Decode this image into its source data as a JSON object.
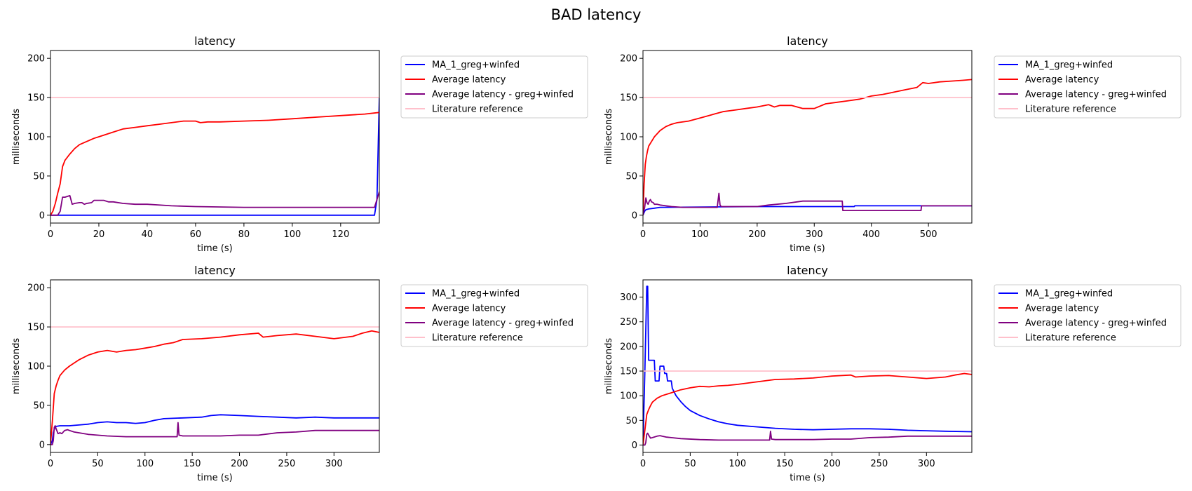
{
  "figure_title": "BAD latency",
  "colors": {
    "ma": "#0000ff",
    "avg": "#ff0000",
    "avg_minus": "#800080",
    "ref": "#ffc0cb"
  },
  "chart_data": [
    {
      "type": "line",
      "title": "latency",
      "xlabel": "time (s)",
      "ylabel": "milliseconds",
      "xlim": [
        0,
        136
      ],
      "ylim": [
        -10,
        210
      ],
      "xticks": [
        0,
        20,
        40,
        60,
        80,
        100,
        120
      ],
      "yticks": [
        0,
        50,
        100,
        150,
        200
      ],
      "legend_position": "outside-right",
      "series": [
        {
          "name": "MA_1_greg+winfed",
          "color": "#0000ff",
          "x": [
            0,
            134,
            135,
            136
          ],
          "y": [
            0,
            0,
            20,
            150
          ]
        },
        {
          "name": "Average latency",
          "color": "#ff0000",
          "x": [
            0,
            1,
            2,
            3,
            4,
            5,
            6,
            8,
            10,
            12,
            15,
            18,
            20,
            25,
            30,
            35,
            40,
            45,
            50,
            55,
            60,
            62,
            65,
            70,
            80,
            90,
            100,
            110,
            120,
            130,
            136
          ],
          "y": [
            0,
            5,
            15,
            28,
            40,
            62,
            70,
            78,
            85,
            90,
            94,
            98,
            100,
            105,
            110,
            112,
            114,
            116,
            118,
            120,
            120,
            118,
            119,
            119,
            120,
            121,
            123,
            125,
            127,
            129,
            131
          ]
        },
        {
          "name": "Average latency - greg+winfed",
          "color": "#800080",
          "x": [
            0,
            3,
            4,
            5,
            6,
            7,
            8,
            9,
            10,
            12,
            13,
            14,
            15,
            17,
            18,
            20,
            22,
            24,
            26,
            30,
            35,
            40,
            50,
            60,
            80,
            100,
            110,
            120,
            134,
            135,
            136
          ],
          "y": [
            0,
            0,
            5,
            23,
            23,
            24,
            25,
            14,
            15,
            16,
            16,
            14,
            15,
            16,
            19,
            19,
            19,
            17,
            17,
            15,
            14,
            14,
            12,
            11,
            10,
            10,
            10,
            10,
            10,
            20,
            30
          ]
        },
        {
          "name": "Literature reference",
          "color": "#ffc0cb",
          "x": [
            0,
            136
          ],
          "y": [
            150,
            150
          ]
        }
      ]
    },
    {
      "type": "line",
      "title": "latency",
      "xlabel": "time (s)",
      "ylabel": "milliseconds",
      "xlim": [
        0,
        576
      ],
      "ylim": [
        -10,
        210
      ],
      "xticks": [
        0,
        100,
        200,
        300,
        400,
        500
      ],
      "yticks": [
        0,
        50,
        100,
        150,
        200
      ],
      "legend_position": "outside-right",
      "series": [
        {
          "name": "MA_1_greg+winfed",
          "color": "#0000ff",
          "x": [
            0,
            3,
            5,
            10,
            20,
            30,
            200,
            370,
            371,
            576
          ],
          "y": [
            0,
            5,
            7,
            8,
            9,
            10,
            11,
            11,
            12,
            12
          ]
        },
        {
          "name": "Average latency",
          "color": "#ff0000",
          "x": [
            0,
            2,
            4,
            6,
            8,
            10,
            15,
            20,
            30,
            40,
            50,
            60,
            80,
            100,
            120,
            140,
            160,
            180,
            200,
            220,
            230,
            240,
            260,
            280,
            300,
            320,
            340,
            360,
            380,
            400,
            420,
            440,
            460,
            480,
            490,
            500,
            520,
            540,
            560,
            576
          ],
          "y": [
            0,
            40,
            65,
            75,
            82,
            88,
            94,
            100,
            108,
            113,
            116,
            118,
            120,
            124,
            128,
            132,
            134,
            136,
            138,
            141,
            138,
            140,
            140,
            136,
            136,
            142,
            144,
            146,
            148,
            152,
            154,
            157,
            160,
            163,
            169,
            168,
            170,
            171,
            172,
            173
          ]
        },
        {
          "name": "Average latency - greg+winfed",
          "color": "#800080",
          "x": [
            0,
            3,
            5,
            7,
            9,
            11,
            13,
            15,
            18,
            20,
            25,
            30,
            40,
            50,
            70,
            90,
            100,
            130,
            133,
            135,
            137,
            200,
            220,
            250,
            280,
            300,
            320,
            349,
            350,
            487,
            488,
            576
          ],
          "y": [
            0,
            10,
            22,
            16,
            14,
            18,
            20,
            17,
            16,
            14,
            14,
            13,
            12,
            11,
            10,
            10,
            10,
            10,
            28,
            13,
            11,
            11,
            13,
            15,
            18,
            18,
            18,
            18,
            6,
            6,
            12,
            12
          ]
        },
        {
          "name": "Literature reference",
          "color": "#ffc0cb",
          "x": [
            0,
            576
          ],
          "y": [
            150,
            150
          ]
        }
      ]
    },
    {
      "type": "line",
      "title": "latency",
      "xlabel": "time (s)",
      "ylabel": "milliseconds",
      "xlim": [
        0,
        348
      ],
      "ylim": [
        -10,
        210
      ],
      "xticks": [
        0,
        50,
        100,
        150,
        200,
        250,
        300
      ],
      "yticks": [
        0,
        50,
        100,
        150,
        200
      ],
      "legend_position": "outside-right",
      "series": [
        {
          "name": "MA_1_greg+winfed",
          "color": "#0000ff",
          "x": [
            0,
            2,
            3,
            5,
            10,
            20,
            30,
            40,
            50,
            60,
            70,
            80,
            90,
            100,
            110,
            120,
            140,
            160,
            170,
            180,
            200,
            220,
            240,
            260,
            280,
            300,
            320,
            348
          ],
          "y": [
            0,
            5,
            15,
            23,
            24,
            24,
            25,
            26,
            28,
            29,
            28,
            28,
            27,
            28,
            31,
            33,
            34,
            35,
            37,
            38,
            37,
            36,
            35,
            34,
            35,
            34,
            34,
            34
          ]
        },
        {
          "name": "Average latency",
          "color": "#ff0000",
          "x": [
            0,
            2,
            4,
            6,
            8,
            10,
            15,
            20,
            30,
            40,
            50,
            60,
            70,
            80,
            90,
            100,
            110,
            120,
            130,
            140,
            160,
            180,
            200,
            220,
            225,
            240,
            260,
            280,
            300,
            320,
            330,
            340,
            348
          ],
          "y": [
            0,
            30,
            65,
            75,
            82,
            88,
            95,
            100,
            108,
            114,
            118,
            120,
            118,
            120,
            121,
            123,
            125,
            128,
            130,
            134,
            135,
            137,
            140,
            142,
            137,
            139,
            141,
            138,
            135,
            138,
            142,
            145,
            143
          ]
        },
        {
          "name": "Average latency - greg+winfed",
          "color": "#800080",
          "x": [
            0,
            2,
            3,
            4,
            5,
            6,
            8,
            10,
            12,
            15,
            18,
            20,
            25,
            30,
            40,
            60,
            80,
            100,
            120,
            134,
            135,
            136,
            140,
            160,
            180,
            200,
            220,
            240,
            260,
            280,
            300,
            348
          ],
          "y": [
            0,
            0,
            5,
            22,
            24,
            20,
            14,
            15,
            14,
            18,
            19,
            18,
            16,
            15,
            13,
            11,
            10,
            10,
            10,
            10,
            28,
            12,
            11,
            11,
            11,
            12,
            12,
            15,
            16,
            18,
            18,
            18
          ]
        },
        {
          "name": "Literature reference",
          "color": "#ffc0cb",
          "x": [
            0,
            348
          ],
          "y": [
            150,
            150
          ]
        }
      ]
    },
    {
      "type": "line",
      "title": "latency",
      "xlabel": "time (s)",
      "ylabel": "milliseconds",
      "xlim": [
        0,
        348
      ],
      "ylim": [
        -15,
        335
      ],
      "xticks": [
        0,
        50,
        100,
        150,
        200,
        250,
        300
      ],
      "yticks": [
        0,
        50,
        100,
        150,
        200,
        250,
        300
      ],
      "legend_position": "outside-right",
      "series": [
        {
          "name": "MA_1_greg+winfed",
          "color": "#0000ff",
          "x": [
            0,
            2,
            4,
            5,
            6,
            7,
            8,
            12,
            13,
            14,
            17,
            18,
            22,
            23,
            25,
            26,
            30,
            31,
            35,
            40,
            45,
            50,
            60,
            70,
            80,
            90,
            100,
            120,
            140,
            160,
            180,
            200,
            220,
            240,
            260,
            280,
            300,
            320,
            348
          ],
          "y": [
            0,
            150,
            322,
            322,
            172,
            172,
            172,
            172,
            130,
            130,
            130,
            160,
            160,
            145,
            145,
            130,
            130,
            115,
            100,
            88,
            78,
            70,
            60,
            53,
            47,
            43,
            40,
            37,
            34,
            32,
            31,
            32,
            33,
            33,
            32,
            30,
            29,
            28,
            27
          ]
        },
        {
          "name": "Average latency",
          "color": "#ff0000",
          "x": [
            0,
            2,
            4,
            6,
            8,
            10,
            15,
            20,
            30,
            40,
            50,
            60,
            70,
            80,
            90,
            100,
            120,
            140,
            160,
            180,
            200,
            220,
            225,
            240,
            260,
            280,
            300,
            320,
            330,
            340,
            348
          ],
          "y": [
            0,
            30,
            62,
            72,
            80,
            87,
            95,
            100,
            106,
            112,
            116,
            119,
            118,
            120,
            121,
            123,
            128,
            133,
            134,
            136,
            140,
            142,
            138,
            140,
            141,
            138,
            135,
            138,
            142,
            145,
            143
          ]
        },
        {
          "name": "Average latency - greg+winfed",
          "color": "#800080",
          "x": [
            0,
            2,
            3,
            4,
            5,
            6,
            8,
            10,
            15,
            18,
            20,
            25,
            30,
            40,
            60,
            80,
            100,
            120,
            134,
            135,
            136,
            140,
            160,
            180,
            200,
            220,
            240,
            260,
            280,
            300,
            348
          ],
          "y": [
            0,
            0,
            5,
            22,
            24,
            20,
            14,
            15,
            18,
            19,
            18,
            16,
            15,
            13,
            11,
            10,
            10,
            10,
            10,
            28,
            12,
            11,
            11,
            11,
            12,
            12,
            15,
            16,
            18,
            18,
            18
          ]
        },
        {
          "name": "Literature reference",
          "color": "#ffc0cb",
          "x": [
            0,
            348
          ],
          "y": [
            150,
            150
          ]
        }
      ]
    }
  ]
}
